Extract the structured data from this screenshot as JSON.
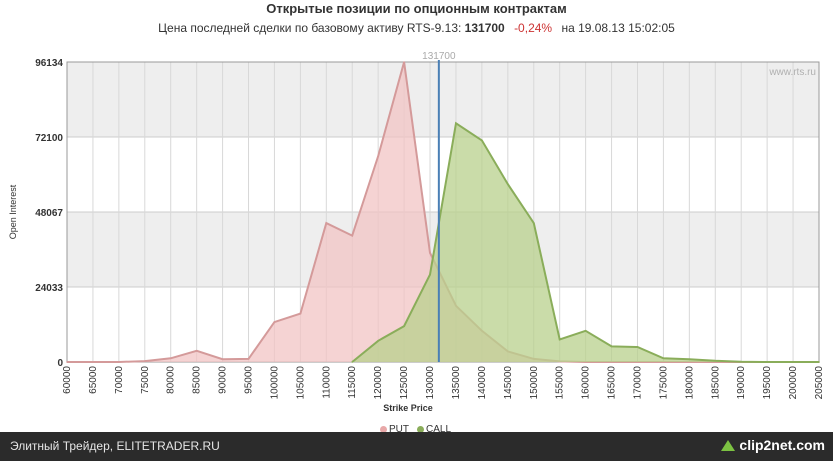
{
  "header": {
    "title": "Открытые позиции по опционным контрактам",
    "subtitle_prefix": "Цена последней сделки по базовому активу RTS-9.13:",
    "last_price": "131700",
    "change": "-0,24%",
    "date_text": "на 19.08.13 15:02:05"
  },
  "watermark": "www.rts.ru",
  "footer": {
    "text": "Элитный Трейдер, ELITETRADER.RU",
    "logo": "clip2net.com"
  },
  "colors": {
    "put_fill": "#f2c4c4",
    "put_line": "#d49a9a",
    "call_fill": "#b8d08c",
    "call_line": "#8aad5a",
    "price_line": "#4a7fb5",
    "band": "#eeeeee"
  },
  "chart_data": {
    "type": "area",
    "title": "Открытые позиции по опционным контрактам",
    "xlabel": "Strike Price",
    "ylabel": "Open Interest",
    "x": [
      60000,
      65000,
      70000,
      75000,
      80000,
      85000,
      90000,
      95000,
      100000,
      105000,
      110000,
      115000,
      120000,
      125000,
      130000,
      135000,
      140000,
      145000,
      150000,
      155000,
      160000,
      165000,
      170000,
      175000,
      180000,
      185000,
      190000,
      195000,
      200000,
      205000
    ],
    "xlim": [
      60000,
      205000
    ],
    "ylim": [
      0,
      96134
    ],
    "yticks": [
      0,
      24033,
      48067,
      72100,
      96134
    ],
    "xtick_labels": [
      "60000",
      "65000",
      "70000",
      "75000",
      "80000",
      "85000",
      "90000",
      "95000",
      "100000",
      "105000",
      "110000",
      "115000",
      "120000",
      "125000",
      "130000",
      "135000",
      "140000",
      "145000",
      "150000",
      "155000",
      "160000",
      "165000",
      "170000",
      "175000",
      "180000",
      "185000",
      "190000",
      "195000",
      "200000",
      "205000"
    ],
    "series": [
      {
        "name": "PUT",
        "values": [
          0,
          0,
          0,
          300,
          1200,
          3600,
          900,
          1000,
          12800,
          15500,
          44500,
          40500,
          66000,
          96134,
          35000,
          18000,
          10000,
          3400,
          1000,
          200,
          0,
          0,
          0,
          0,
          0,
          0,
          0,
          0,
          0,
          0
        ]
      },
      {
        "name": "CALL",
        "values": [
          null,
          null,
          null,
          null,
          null,
          null,
          null,
          null,
          null,
          null,
          null,
          0,
          6800,
          11500,
          28000,
          76500,
          71000,
          57000,
          44500,
          7200,
          10000,
          5000,
          4800,
          1200,
          900,
          400,
          100,
          0,
          0,
          0
        ]
      }
    ],
    "annotations": [
      {
        "type": "vline",
        "x": 131700,
        "label": "131700"
      }
    ],
    "grid": true,
    "legend_position": "bottom-center"
  }
}
